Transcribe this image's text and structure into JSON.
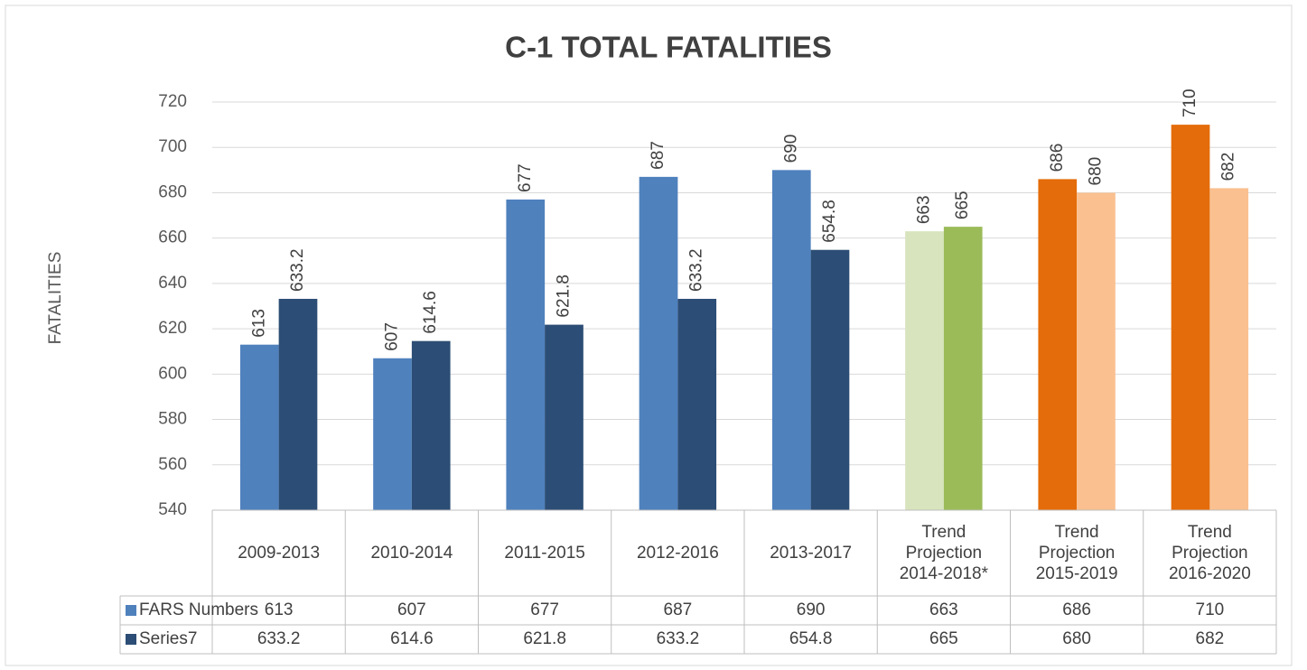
{
  "chart_data": {
    "type": "bar",
    "title": "C-1 TOTAL FATALITIES",
    "y_label": "FATALITIES",
    "categories": [
      "2009-2013",
      "2010-2014",
      "2011-2015",
      "2012-2016",
      "2013-2017",
      "Trend Projection 2014-2018*",
      "Trend Projection 2015-2019",
      "Trend Projection 2016-2020"
    ],
    "series": [
      {
        "name": "FARS Numbers",
        "color": "#4f81bd",
        "colors": [
          "#4f81bd",
          "#4f81bd",
          "#4f81bd",
          "#4f81bd",
          "#4f81bd",
          "#d7e4bd",
          "#e46c0a",
          "#e46c0a"
        ],
        "values": [
          613,
          607,
          677,
          687,
          690,
          663,
          686,
          710
        ]
      },
      {
        "name": "Series7",
        "color": "#2c4d75",
        "colors": [
          "#2c4d75",
          "#2c4d75",
          "#2c4d75",
          "#2c4d75",
          "#2c4d75",
          "#9bbb59",
          "#fac090",
          "#fac090"
        ],
        "values": [
          633.2,
          614.6,
          621.8,
          633.2,
          654.8,
          665,
          680,
          682
        ]
      }
    ],
    "ylim": [
      540,
      720
    ],
    "yticks": [
      540,
      560,
      580,
      600,
      620,
      640,
      660,
      680,
      700,
      720
    ],
    "grid": true,
    "data_table": true
  }
}
